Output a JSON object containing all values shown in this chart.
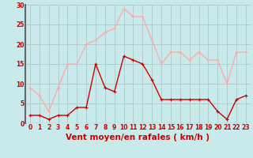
{
  "hours": [
    0,
    1,
    2,
    3,
    4,
    5,
    6,
    7,
    8,
    9,
    10,
    11,
    12,
    13,
    14,
    15,
    16,
    17,
    18,
    19,
    20,
    21,
    22,
    23
  ],
  "wind_avg": [
    2,
    2,
    1,
    2,
    2,
    4,
    4,
    15,
    9,
    8,
    17,
    16,
    15,
    11,
    6,
    6,
    6,
    6,
    6,
    6,
    3,
    1,
    6,
    7
  ],
  "wind_gust": [
    9,
    7,
    3,
    9,
    15,
    15,
    20,
    21,
    23,
    24,
    29,
    27,
    27,
    21,
    15,
    18,
    18,
    16,
    18,
    16,
    16,
    10,
    18,
    18
  ],
  "color_avg": "#cc0000",
  "color_gust": "#ffaaaa",
  "bg_color": "#c8eaea",
  "grid_color": "#b0c8c8",
  "xlabel": "Vent moyen/en rafales ( km/h )",
  "ylim": [
    0,
    30
  ],
  "xlim": [
    -0.5,
    23.5
  ],
  "yticks": [
    0,
    5,
    10,
    15,
    20,
    25,
    30
  ],
  "xticks": [
    0,
    1,
    2,
    3,
    4,
    5,
    6,
    7,
    8,
    9,
    10,
    11,
    12,
    13,
    14,
    15,
    16,
    17,
    18,
    19,
    20,
    21,
    22,
    23
  ],
  "marker_size": 2.5,
  "line_width": 1.0,
  "tick_fontsize": 5.5,
  "xlabel_fontsize": 7.5
}
